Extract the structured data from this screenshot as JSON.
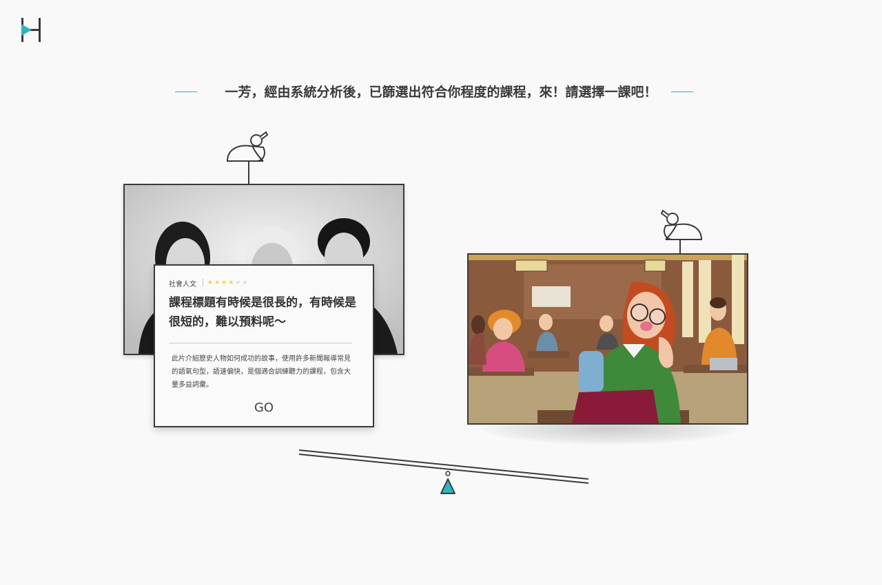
{
  "header": {
    "logo_icon": "h-play-logo-icon"
  },
  "headline": {
    "text": "一芳，經由系統分析後，已篩選出符合你程度的課程，來！請選擇一課吧！",
    "accent_color": "#2bb5c2"
  },
  "course_left": {
    "image": "historical-figures-photo",
    "category": "社會人文",
    "rating": 4,
    "rating_max": 6,
    "title": "課程標題有時候是很長的，有時候是很短的，難以預料呢～",
    "description": "此片介紹歷史人物如何成功的故事，使用許多新聞報導常見的語氣句型，語速偏快，是個適合訓練聽力的課程，包含大量多益詞彙。",
    "go_label": "GO"
  },
  "course_right": {
    "image": "classroom-illustration"
  },
  "decor": {
    "bird_icon": "bird-icon",
    "seesaw_icon": "seesaw-icon",
    "star_color": "#f5d33b"
  }
}
